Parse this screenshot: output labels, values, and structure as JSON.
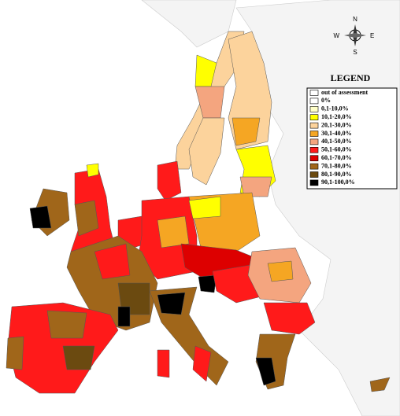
{
  "compass": {
    "north": "N",
    "east": "E",
    "south": "S",
    "west": "W"
  },
  "legend": {
    "title": "LEGEND",
    "items": [
      {
        "label": "out of assessment",
        "color": "#ffffff"
      },
      {
        "label": "0%",
        "color": "#ffffff"
      },
      {
        "label": "0,1-10,0%",
        "color": "#ffffc8"
      },
      {
        "label": "10,1-20,0%",
        "color": "#ffff00"
      },
      {
        "label": "20,1-30,0%",
        "color": "#fcd39c"
      },
      {
        "label": "30,1-40,0%",
        "color": "#f5a623"
      },
      {
        "label": "40,1-50,0%",
        "color": "#f4a57f"
      },
      {
        "label": "50,1-60,0%",
        "color": "#ff1a1a"
      },
      {
        "label": "60,1-70,0%",
        "color": "#dd0000"
      },
      {
        "label": "70,1-80,0%",
        "color": "#a0661a"
      },
      {
        "label": "80,1-90,0%",
        "color": "#6b4a10"
      },
      {
        "label": "90,1-100,0%",
        "color": "#000000"
      }
    ]
  }
}
